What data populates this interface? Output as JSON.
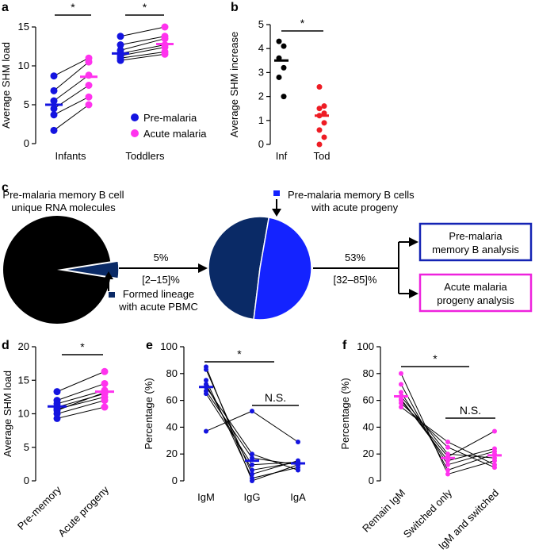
{
  "colors": {
    "pre": "#1414e0",
    "acute": "#ff33ee",
    "inf": "#000000",
    "tod": "#ee1c24",
    "navy": "#0a2a66",
    "blue": "#1423ff",
    "box_pre": "#1423b4",
    "box_acute": "#ee22dd"
  },
  "panel_c": {
    "letter": "c",
    "pie1_title": [
      "Pre-malaria memory B cell",
      "unique RNA molecules"
    ],
    "pie1_lineage_label": [
      "Formed lineage",
      "with acute PBMC"
    ],
    "arrow1_pct": "5%",
    "arrow1_range": "[2–15]%",
    "pie2_title": [
      "Pre-malaria memory B cells",
      "with acute progeny"
    ],
    "arrow2_pct": "53%",
    "arrow2_range": "[32–85]%",
    "box1": [
      "Pre-malaria",
      "memory B analysis"
    ],
    "box2": [
      "Acute malaria",
      "progeny analysis"
    ]
  },
  "chart_data": [
    {
      "panel": "a",
      "type": "scatter",
      "ylabel": "Average SHM load",
      "ylim": [
        0,
        15
      ],
      "yticks": [
        0,
        5,
        10,
        15
      ],
      "categories": [
        "Infants",
        "Toddlers"
      ],
      "series": [
        {
          "name": "Pre-malaria"
        },
        {
          "name": "Acute malaria"
        }
      ],
      "pairs": {
        "Infants": [
          [
            8.7,
            11.0
          ],
          [
            6.8,
            10.5
          ],
          [
            5.5,
            8.8
          ],
          [
            4.5,
            7.5
          ],
          [
            3.7,
            6.0
          ],
          [
            1.7,
            5.0
          ]
        ],
        "Toddlers": [
          [
            13.8,
            15.0
          ],
          [
            12.7,
            13.8
          ],
          [
            12.0,
            13.5
          ],
          [
            11.6,
            12.7
          ],
          [
            11.3,
            12.4
          ],
          [
            11.0,
            11.8
          ],
          [
            10.7,
            11.5
          ]
        ]
      },
      "medians": {
        "Infants": [
          5.0,
          8.6
        ],
        "Toddlers": [
          11.6,
          12.8
        ]
      },
      "significance": [
        {
          "label": "*"
        },
        {
          "label": "*"
        }
      ]
    },
    {
      "panel": "b",
      "type": "scatter",
      "ylabel": "Average SHM increase",
      "ylim": [
        0,
        5
      ],
      "yticks": [
        0,
        1,
        2,
        3,
        4,
        5
      ],
      "categories": [
        "Inf",
        "Tod"
      ],
      "points": {
        "Inf": [
          4.3,
          4.1,
          3.6,
          3.2,
          2.8,
          2.0
        ],
        "Tod": [
          2.4,
          1.6,
          1.5,
          1.3,
          1.2,
          0.9,
          0.6,
          0.3,
          0.0
        ]
      },
      "medians": {
        "Inf": 3.5,
        "Tod": 1.2
      },
      "significance": [
        {
          "label": "*"
        }
      ]
    },
    {
      "panel": "d",
      "type": "scatter",
      "ylabel": "Average SHM load",
      "ylim": [
        0,
        20
      ],
      "yticks": [
        0,
        5,
        10,
        15,
        20
      ],
      "categories": [
        "Pre-memory",
        "Acute progeny"
      ],
      "pairs": [
        [
          13.3,
          16.3
        ],
        [
          12.0,
          14.5
        ],
        [
          11.5,
          13.5
        ],
        [
          11.0,
          13.0
        ],
        [
          10.7,
          12.5
        ],
        [
          10.5,
          13.2
        ],
        [
          10.0,
          12.0
        ],
        [
          9.3,
          11.0
        ]
      ],
      "medians": [
        11.1,
        13.3
      ],
      "significance": [
        {
          "label": "*"
        }
      ]
    },
    {
      "panel": "e",
      "type": "scatter",
      "ylabel": "Percentage (%)",
      "ylim": [
        0,
        100
      ],
      "yticks": [
        0,
        20,
        40,
        60,
        80,
        100
      ],
      "categories": [
        "IgM",
        "IgG",
        "IgA"
      ],
      "lines": [
        [
          85,
          0,
          12
        ],
        [
          83,
          5,
          15
        ],
        [
          75,
          2,
          10
        ],
        [
          72,
          8,
          14
        ],
        [
          70,
          20,
          8
        ],
        [
          67,
          17,
          12
        ],
        [
          65,
          12,
          14
        ],
        [
          37,
          52,
          29
        ]
      ],
      "medians": [
        70,
        15,
        13
      ],
      "significance": [
        {
          "label": "*"
        },
        {
          "label": "N.S."
        }
      ]
    },
    {
      "panel": "f",
      "type": "scatter",
      "ylabel": "Percentage (%)",
      "ylim": [
        0,
        100
      ],
      "yticks": [
        0,
        20,
        40,
        60,
        80,
        100
      ],
      "categories": [
        "Remain IgM",
        "Switched only",
        "IgM and switched"
      ],
      "lines": [
        [
          80,
          5,
          15
        ],
        [
          72,
          8,
          20
        ],
        [
          66,
          12,
          22
        ],
        [
          63,
          20,
          17
        ],
        [
          61,
          15,
          24
        ],
        [
          60,
          18,
          37
        ],
        [
          58,
          25,
          10
        ],
        [
          55,
          29,
          12
        ]
      ],
      "medians": [
        63,
        17,
        19
      ],
      "significance": [
        {
          "label": "*"
        },
        {
          "label": "N.S."
        }
      ]
    }
  ]
}
